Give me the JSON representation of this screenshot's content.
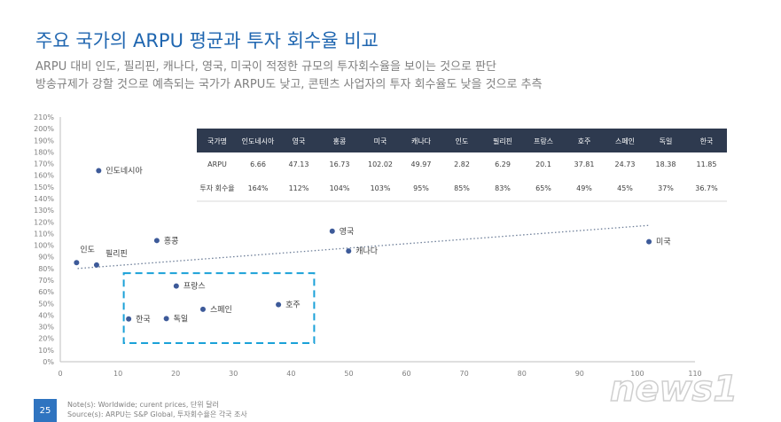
{
  "header": {
    "title": "주요 국가의 ARPU 평균과 투자 회수율 비교",
    "subtitle_line1": "ARPU 대비 인도, 필리핀, 캐나다, 영국, 미국이 적정한 규모의 투자회수율을 보이는 것으로 판단",
    "subtitle_line2": "방송규제가 강할 것으로 예측되는 국가가 ARPU도 낮고, 콘텐츠 사업자의 투자 회수율도 낮을 것으로 추측"
  },
  "chart_data": {
    "type": "scatter",
    "xlim": [
      0,
      110
    ],
    "ylim": [
      0,
      210
    ],
    "x_ticks": [
      "0",
      "10",
      "20",
      "30",
      "40",
      "50",
      "60",
      "70",
      "80",
      "90",
      "100",
      "110"
    ],
    "y_ticks": [
      "0%",
      "10%",
      "20%",
      "30%",
      "40%",
      "50%",
      "60%",
      "70%",
      "80%",
      "90%",
      "100%",
      "110%",
      "120%",
      "130%",
      "140%",
      "150%",
      "160%",
      "170%",
      "180%",
      "190%",
      "200%",
      "210%"
    ],
    "points": [
      {
        "label": "인도네시아",
        "x": 6.66,
        "y": 164
      },
      {
        "label": "영국",
        "x": 47.13,
        "y": 112
      },
      {
        "label": "홍콩",
        "x": 16.73,
        "y": 104
      },
      {
        "label": "미국",
        "x": 102.02,
        "y": 103
      },
      {
        "label": "캐나다",
        "x": 49.97,
        "y": 95
      },
      {
        "label": "인도",
        "x": 2.82,
        "y": 85
      },
      {
        "label": "필리핀",
        "x": 6.29,
        "y": 83
      },
      {
        "label": "프랑스",
        "x": 20.1,
        "y": 65
      },
      {
        "label": "호주",
        "x": 37.81,
        "y": 49
      },
      {
        "label": "스페인",
        "x": 24.73,
        "y": 45
      },
      {
        "label": "독일",
        "x": 18.38,
        "y": 37
      },
      {
        "label": "한국",
        "x": 11.85,
        "y": 36.7
      }
    ],
    "trendline": {
      "x_start": 3,
      "y_start": 80,
      "x_end": 102,
      "y_end": 117
    },
    "highlight_box": {
      "x_min": 11,
      "x_max": 44,
      "y_min": 16,
      "y_max": 76
    },
    "table": {
      "headers": [
        "국가명",
        "인도네시아",
        "영국",
        "홍콩",
        "미국",
        "캐나다",
        "인도",
        "필리핀",
        "프랑스",
        "호주",
        "스페인",
        "독일",
        "한국"
      ],
      "rows": [
        [
          "ARPU",
          "6.66",
          "47.13",
          "16.73",
          "102.02",
          "49.97",
          "2.82",
          "6.29",
          "20.1",
          "37.81",
          "24.73",
          "18.38",
          "11.85"
        ],
        [
          "투자 회수율",
          "164%",
          "112%",
          "104%",
          "103%",
          "95%",
          "85%",
          "83%",
          "65%",
          "49%",
          "45%",
          "37%",
          "36.7%"
        ]
      ]
    },
    "colors": {
      "marker": "#3d5a99",
      "header_bg": "#2e3a4f",
      "highlight": "#1aa1d8"
    }
  },
  "footer": {
    "page": "25",
    "note1": "Note(s): Worldwide; curent prices, 단위 달러",
    "note2": "Source(s): ARPU는 S&P Global, 투자회수율은 각국 조사"
  },
  "watermark": "news1"
}
